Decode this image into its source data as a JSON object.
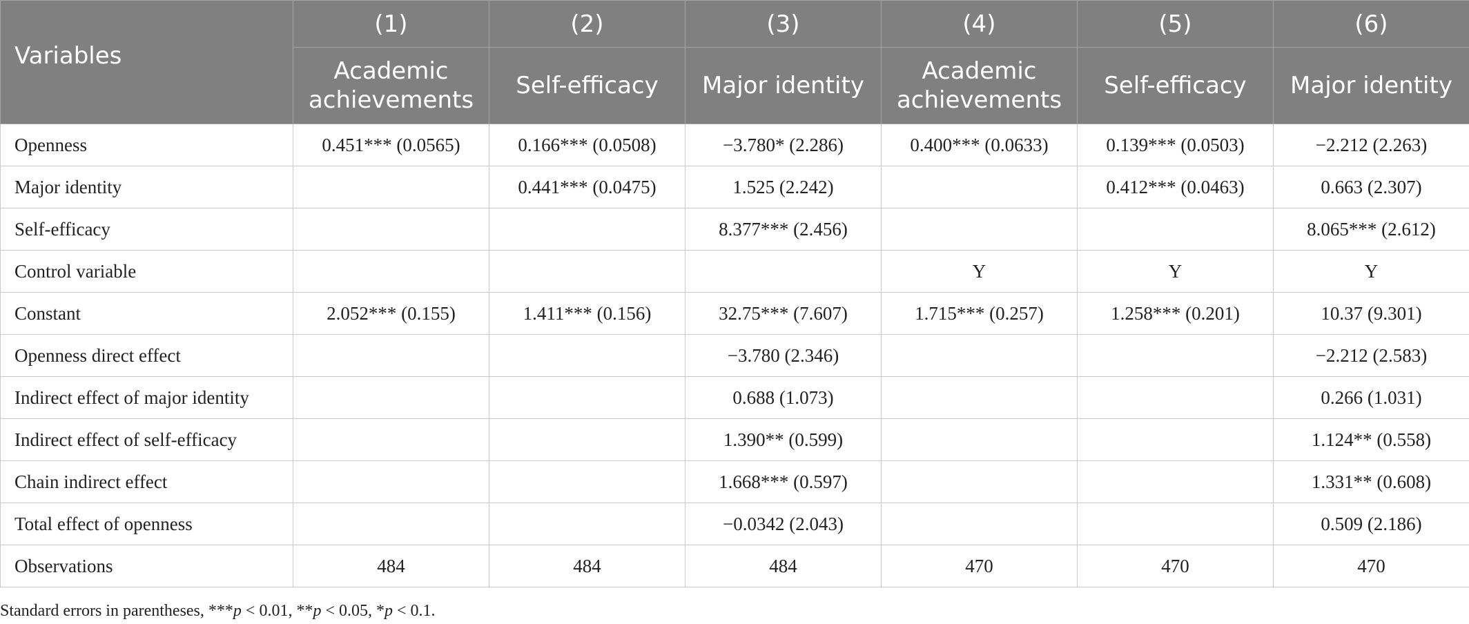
{
  "header": {
    "variables_label": "Variables",
    "columns": [
      {
        "num": "(1)",
        "title": "Academic achievements"
      },
      {
        "num": "(2)",
        "title": "Self-efficacy"
      },
      {
        "num": "(3)",
        "title": "Major identity"
      },
      {
        "num": "(4)",
        "title": "Academic achievements"
      },
      {
        "num": "(5)",
        "title": "Self-efficacy"
      },
      {
        "num": "(6)",
        "title": "Major identity"
      }
    ]
  },
  "rows": [
    {
      "label": "Openness",
      "cells": [
        "0.451*** (0.0565)",
        "0.166*** (0.0508)",
        "−3.780* (2.286)",
        "0.400*** (0.0633)",
        "0.139*** (0.0503)",
        "−2.212 (2.263)"
      ]
    },
    {
      "label": "Major identity",
      "cells": [
        "",
        "0.441*** (0.0475)",
        "1.525 (2.242)",
        "",
        "0.412*** (0.0463)",
        "0.663 (2.307)"
      ]
    },
    {
      "label": "Self-efficacy",
      "cells": [
        "",
        "",
        "8.377*** (2.456)",
        "",
        "",
        "8.065*** (2.612)"
      ]
    },
    {
      "label": "Control variable",
      "cells": [
        "",
        "",
        "",
        "Y",
        "Y",
        "Y"
      ]
    },
    {
      "label": "Constant",
      "cells": [
        "2.052*** (0.155)",
        "1.411*** (0.156)",
        "32.75*** (7.607)",
        "1.715*** (0.257)",
        "1.258*** (0.201)",
        "10.37 (9.301)"
      ]
    },
    {
      "label": "Openness direct effect",
      "cells": [
        "",
        "",
        "−3.780 (2.346)",
        "",
        "",
        "−2.212 (2.583)"
      ]
    },
    {
      "label": "Indirect effect of major identity",
      "cells": [
        "",
        "",
        "0.688 (1.073)",
        "",
        "",
        "0.266 (1.031)"
      ]
    },
    {
      "label": "Indirect effect of self-efficacy",
      "cells": [
        "",
        "",
        "1.390** (0.599)",
        "",
        "",
        "1.124** (0.558)"
      ]
    },
    {
      "label": "Chain indirect effect",
      "cells": [
        "",
        "",
        "1.668*** (0.597)",
        "",
        "",
        "1.331** (0.608)"
      ]
    },
    {
      "label": "Total effect of openness",
      "cells": [
        "",
        "",
        "−0.0342 (2.043)",
        "",
        "",
        "0.509 (2.186)"
      ]
    },
    {
      "label": "Observations",
      "cells": [
        "484",
        "484",
        "484",
        "470",
        "470",
        "470"
      ]
    }
  ],
  "footnote": {
    "lead": "Standard errors in parentheses, ***",
    "p1": "p",
    "t1": " < 0.01, **",
    "p2": "p",
    "t2": " < 0.05, *",
    "p3": "p",
    "t3": " < 0.1."
  }
}
